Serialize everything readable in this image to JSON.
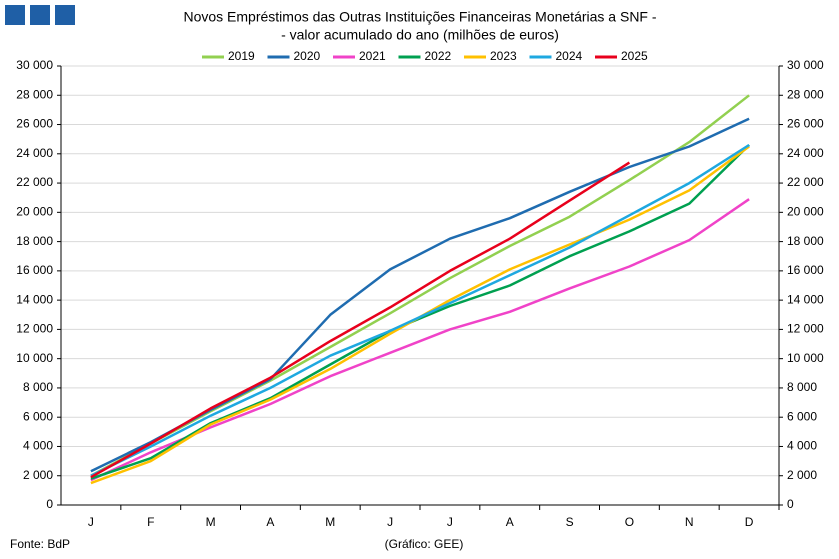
{
  "chart_data": {
    "type": "line",
    "title": "Novos Empréstimos das Outras Instituições Financeiras Monetárias a SNF -",
    "subtitle": "- valor acumulado do ano (milhões de euros)",
    "source": "Fonte: BdP",
    "credit": "(Gráfico: GEE)",
    "categories": [
      "J",
      "F",
      "M",
      "A",
      "M",
      "J",
      "J",
      "A",
      "S",
      "O",
      "N",
      "D"
    ],
    "series": [
      {
        "name": "2019",
        "color": "#92d050",
        "values": [
          2000,
          4200,
          6400,
          8500,
          10800,
          13100,
          15500,
          17700,
          19700,
          22200,
          24800,
          28000
        ]
      },
      {
        "name": "2020",
        "color": "#1f6cb0",
        "values": [
          2300,
          4300,
          6500,
          8600,
          13000,
          16100,
          18200,
          19600,
          21400,
          23100,
          24500,
          26400
        ]
      },
      {
        "name": "2021",
        "color": "#f043c8",
        "values": [
          1700,
          3600,
          5300,
          6900,
          8800,
          10400,
          12000,
          13200,
          14800,
          16300,
          18100,
          20900
        ]
      },
      {
        "name": "2022",
        "color": "#00a050",
        "values": [
          1800,
          3200,
          5600,
          7300,
          9600,
          11900,
          13600,
          15000,
          17000,
          18700,
          20600,
          24600
        ]
      },
      {
        "name": "2023",
        "color": "#ffc000",
        "values": [
          1500,
          3000,
          5500,
          7200,
          9300,
          11700,
          14000,
          16100,
          17800,
          19500,
          21500,
          24500
        ]
      },
      {
        "name": "2024",
        "color": "#1ea8e0",
        "values": [
          2000,
          4000,
          6100,
          8000,
          10200,
          11900,
          13800,
          15700,
          17600,
          19800,
          22000,
          24600
        ]
      },
      {
        "name": "2025",
        "color": "#e8001c",
        "values": [
          1900,
          4200,
          6600,
          8700,
          11200,
          13500,
          16000,
          18200,
          20800,
          23400,
          null,
          null
        ]
      }
    ],
    "ylim": [
      0,
      30000
    ],
    "yticks": [
      0,
      {
        "value": 2000,
        "label": "2 000"
      },
      {
        "value": 4000,
        "label": "4 000"
      },
      {
        "value": 6000,
        "label": "6 000"
      },
      {
        "value": 8000,
        "label": "8 000"
      },
      {
        "value": 10000,
        "label": "10 000"
      },
      {
        "value": 12000,
        "label": "12 000"
      },
      {
        "value": 14000,
        "label": "14 000"
      },
      {
        "value": 16000,
        "label": "16 000"
      },
      {
        "value": 18000,
        "label": "18 000"
      },
      {
        "value": 20000,
        "label": "20 000"
      },
      {
        "value": 22000,
        "label": "22 000"
      },
      {
        "value": 24000,
        "label": "24 000"
      },
      {
        "value": 26000,
        "label": "26 000"
      },
      {
        "value": 28000,
        "label": "28 000"
      },
      {
        "value": 30000,
        "label": "30 000"
      }
    ],
    "y2lim": [
      0,
      30000
    ],
    "y2ticks": [
      0,
      {
        "value": 2000,
        "label": "2 000"
      },
      {
        "value": 4000,
        "label": "4 000"
      },
      {
        "value": 6000,
        "label": "6 000"
      },
      {
        "value": 8000,
        "label": "8 000"
      },
      {
        "value": 10000,
        "label": "10 000"
      },
      {
        "value": 12000,
        "label": "12 000"
      },
      {
        "value": 14000,
        "label": "14 000"
      },
      {
        "value": 16000,
        "label": "16 000"
      },
      {
        "value": 18000,
        "label": "18 000"
      },
      {
        "value": 20000,
        "label": "20 000"
      },
      {
        "value": 22000,
        "label": "22 000"
      },
      {
        "value": 24000,
        "label": "24 000"
      },
      {
        "value": 26000,
        "label": "26 000"
      },
      {
        "value": 28000,
        "label": "28 000"
      },
      {
        "value": 30000,
        "label": "30 000"
      }
    ],
    "grid": true,
    "legend": "top"
  }
}
